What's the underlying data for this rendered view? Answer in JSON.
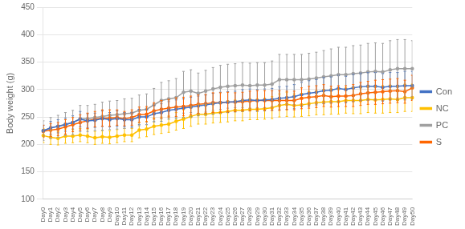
{
  "chart_data": {
    "type": "line",
    "ylabel": "Body weight (g)",
    "categories": [
      "Day0",
      "Day1",
      "Day2",
      "Day3",
      "Day4",
      "Day5",
      "Day6",
      "Day7",
      "Day8",
      "Day9",
      "Day10",
      "Day11",
      "Day12",
      "Day13",
      "Day14",
      "Day15",
      "Day16",
      "Day17",
      "Day18",
      "Day19",
      "Day20",
      "Day21",
      "Day22",
      "Day23",
      "Day24",
      "Day25",
      "Day26",
      "Day27",
      "Day28",
      "Day29",
      "Day30",
      "Day31",
      "Day32",
      "Day33",
      "Day34",
      "Day35",
      "Day36",
      "Day37",
      "Day38",
      "Day39",
      "Day40",
      "Day41",
      "Day42",
      "Day43",
      "Day44",
      "Day45",
      "Day46",
      "Day47",
      "Day48",
      "Day49",
      "Day50"
    ],
    "series": [
      {
        "name": "Con",
        "color": "#4472C4",
        "values": [
          225,
          230,
          233,
          236,
          240,
          246,
          243,
          244,
          247,
          245,
          247,
          245,
          245,
          250,
          250,
          256,
          258,
          262,
          264,
          266,
          268,
          270,
          272,
          274,
          276,
          277,
          278,
          280,
          281,
          280,
          281,
          282,
          284,
          285,
          287,
          291,
          293,
          295,
          298,
          299,
          302,
          300,
          303,
          305,
          306,
          306,
          304,
          306,
          306,
          307,
          307
        ],
        "errors": [
          10,
          12,
          12,
          12,
          12,
          14,
          13,
          13,
          14,
          13,
          14,
          13,
          13,
          14,
          14,
          15,
          16,
          16,
          17,
          17,
          18,
          18,
          18,
          19,
          19,
          19,
          19,
          20,
          20,
          20,
          20,
          20,
          21,
          21,
          22,
          22,
          23,
          23,
          24,
          24,
          24,
          24,
          25,
          25,
          25,
          25,
          25,
          25,
          25,
          26,
          26
        ]
      },
      {
        "name": "NC",
        "color": "#FFC000",
        "values": [
          216,
          213,
          211,
          215,
          215,
          217,
          215,
          212,
          214,
          213,
          215,
          217,
          217,
          226,
          228,
          233,
          235,
          237,
          242,
          246,
          251,
          255,
          255,
          257,
          258,
          260,
          262,
          262,
          264,
          264,
          265,
          267,
          271,
          273,
          271,
          272,
          274,
          276,
          277,
          278,
          278,
          280,
          280,
          280,
          282,
          281,
          282,
          283,
          282,
          285,
          285
        ],
        "errors": [
          13,
          13,
          12,
          13,
          12,
          12,
          12,
          12,
          12,
          12,
          12,
          12,
          12,
          14,
          14,
          15,
          15,
          15,
          16,
          17,
          18,
          18,
          18,
          18,
          18,
          19,
          19,
          19,
          19,
          19,
          19,
          20,
          21,
          22,
          21,
          21,
          22,
          22,
          23,
          23,
          23,
          23,
          24,
          24,
          24,
          24,
          25,
          25,
          24,
          25,
          25
        ]
      },
      {
        "name": "PC",
        "color": "#A0A0A0",
        "values": [
          225,
          230,
          233,
          237,
          240,
          247,
          247,
          249,
          251,
          253,
          254,
          256,
          257,
          262,
          264,
          272,
          280,
          283,
          285,
          295,
          297,
          293,
          297,
          301,
          304,
          306,
          307,
          308,
          307,
          308,
          308,
          310,
          318,
          318,
          318,
          318,
          319,
          321,
          323,
          325,
          327,
          327,
          329,
          330,
          332,
          333,
          332,
          336,
          338,
          338,
          338
        ],
        "errors": [
          18,
          19,
          20,
          21,
          22,
          24,
          24,
          24,
          26,
          26,
          26,
          27,
          27,
          28,
          28,
          30,
          33,
          33,
          35,
          38,
          39,
          37,
          38,
          39,
          40,
          40,
          40,
          41,
          41,
          41,
          41,
          42,
          46,
          46,
          46,
          46,
          47,
          47,
          48,
          49,
          50,
          50,
          51,
          51,
          52,
          52,
          52,
          53,
          53,
          53,
          51
        ]
      },
      {
        "name": "S",
        "color": "#FF6600",
        "values": [
          224,
          226,
          228,
          232,
          236,
          240,
          243,
          246,
          248,
          248,
          249,
          247,
          249,
          254,
          255,
          261,
          264,
          266,
          268,
          269,
          271,
          273,
          274,
          276,
          276,
          277,
          277,
          278,
          279,
          280,
          280,
          280,
          280,
          280,
          280,
          284,
          286,
          287,
          289,
          287,
          288,
          288,
          289,
          292,
          294,
          295,
          296,
          297,
          298,
          296,
          303
        ],
        "errors": [
          11,
          12,
          12,
          13,
          13,
          14,
          14,
          14,
          15,
          15,
          14,
          13,
          14,
          14,
          14,
          15,
          16,
          16,
          17,
          17,
          17,
          17,
          17,
          18,
          18,
          18,
          17,
          17,
          18,
          18,
          18,
          18,
          18,
          17,
          17,
          19,
          20,
          20,
          20,
          19,
          19,
          19,
          20,
          21,
          21,
          22,
          22,
          22,
          22,
          21,
          23
        ]
      }
    ],
    "ylim": [
      100,
      450
    ],
    "yticks": [
      100,
      150,
      200,
      250,
      300,
      350,
      400,
      450
    ],
    "grid": "y",
    "legend": "right",
    "marker": "circle"
  }
}
